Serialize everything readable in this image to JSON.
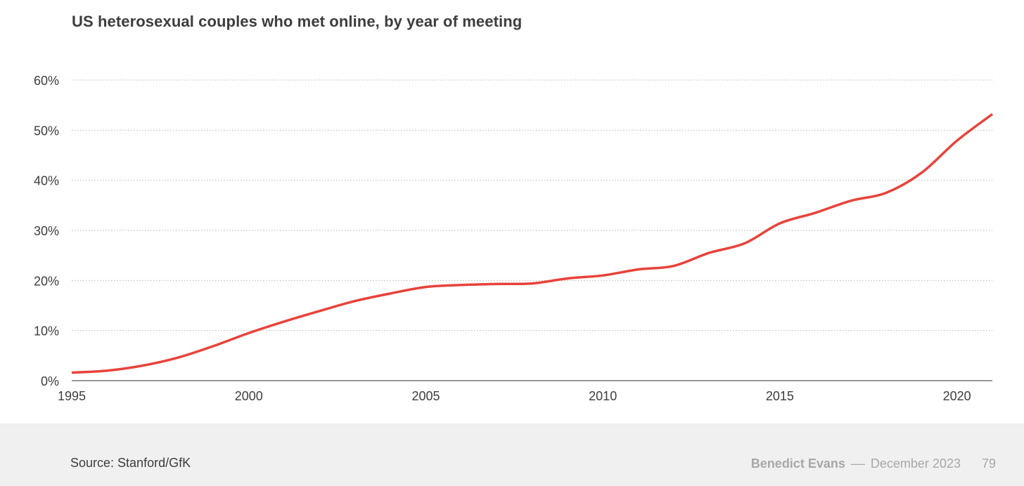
{
  "slide": {
    "title": "US heterosexual couples who met online, by year of meeting",
    "source": "Source: Stanford/GfK",
    "author": "Benedict Evans",
    "separator": "––",
    "date": "December 2023",
    "page_number": "79"
  },
  "colors": {
    "line": "#e8423a",
    "grid": "#b5b5b5",
    "axis": "#5a5a5a",
    "tick_text": "#3d3d3d",
    "footer_bg": "#f0f0f0"
  },
  "chart_data": {
    "type": "line",
    "title": "US heterosexual couples who met online, by year of meeting",
    "xlabel": "",
    "ylabel": "",
    "xlim": [
      1995,
      2021
    ],
    "ylim": [
      0,
      60
    ],
    "x_ticks": [
      1995,
      2000,
      2005,
      2010,
      2015,
      2020
    ],
    "x_tick_labels": [
      "1995",
      "2000",
      "2005",
      "2010",
      "2015",
      "2020"
    ],
    "y_ticks": [
      0,
      10,
      20,
      30,
      40,
      50,
      60
    ],
    "y_tick_labels": [
      "0%",
      "10%",
      "20%",
      "30%",
      "40%",
      "50%",
      "60%"
    ],
    "grid": "horizontal dotted",
    "legend": "none",
    "series": [
      {
        "x": [
          1995,
          1996,
          1997,
          1998,
          1999,
          2000,
          2001,
          2002,
          2003,
          2004,
          2005,
          2006,
          2007,
          2008,
          2009,
          2010,
          2011,
          2012,
          2013,
          2014,
          2015,
          2016,
          2017,
          2018,
          2019,
          2020,
          2021
        ],
        "y": [
          1.6,
          2.0,
          3.0,
          4.6,
          6.9,
          9.5,
          11.8,
          13.9,
          15.9,
          17.4,
          18.7,
          19.1,
          19.3,
          19.4,
          20.4,
          21.0,
          22.2,
          22.9,
          25.5,
          27.4,
          31.4,
          33.5,
          35.9,
          37.5,
          41.5,
          47.9,
          53.2
        ]
      }
    ]
  }
}
